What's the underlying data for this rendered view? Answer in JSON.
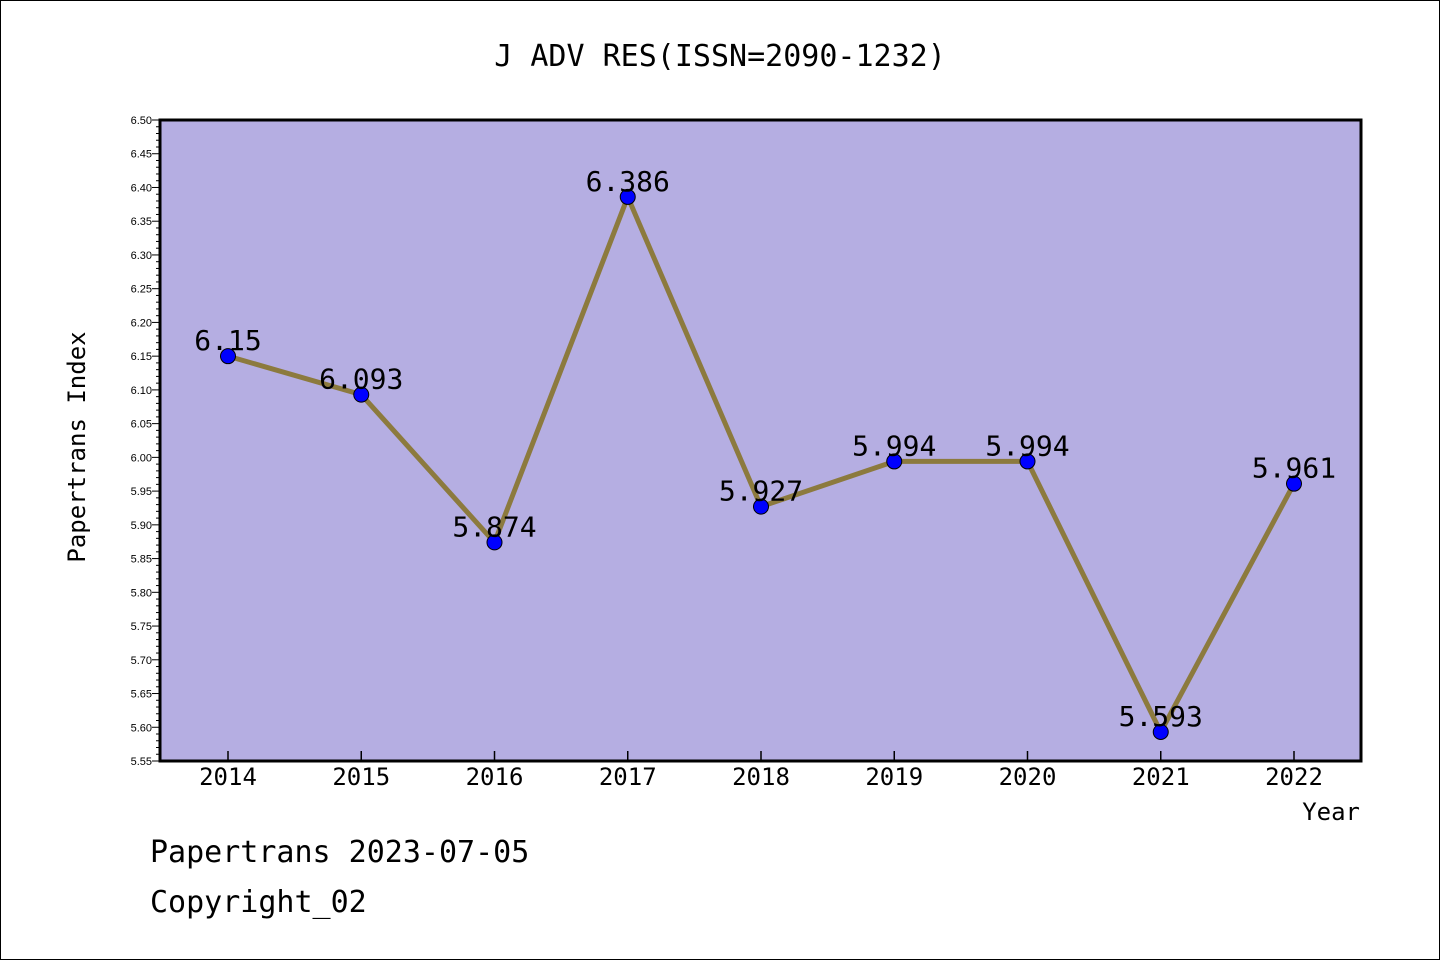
{
  "chart_data": {
    "type": "line",
    "title": "J ADV RES(ISSN=2090-1232)",
    "xlabel": "Year",
    "ylabel": "Papertrans Index",
    "categories": [
      "2014",
      "2015",
      "2016",
      "2017",
      "2018",
      "2019",
      "2020",
      "2021",
      "2022"
    ],
    "series": [
      {
        "values": [
          6.15,
          6.093,
          5.874,
          6.386,
          5.927,
          5.994,
          5.994,
          5.593,
          5.961
        ],
        "labels": [
          "6.15",
          "6.093",
          "5.874",
          "6.386",
          "5.927",
          "5.994",
          "5.994",
          "5.593",
          "5.961"
        ]
      }
    ],
    "ylim": [
      5.55,
      6.5
    ],
    "yticks": [
      "5.55",
      "5.60",
      "5.65",
      "5.70",
      "5.75",
      "5.80",
      "5.85",
      "5.90",
      "5.95",
      "6.00",
      "6.05",
      "6.10",
      "6.15",
      "6.20",
      "6.25",
      "6.30",
      "6.35",
      "6.40",
      "6.45",
      "6.50"
    ],
    "grid": false,
    "legend": "none",
    "colors": {
      "plot_background": "#b5aee2",
      "line": "#8c7a3e",
      "marker": "#0000ff",
      "axis": "#000000"
    }
  },
  "footer": {
    "line1": "Papertrans 2023-07-05",
    "line2": "Copyright_02"
  }
}
